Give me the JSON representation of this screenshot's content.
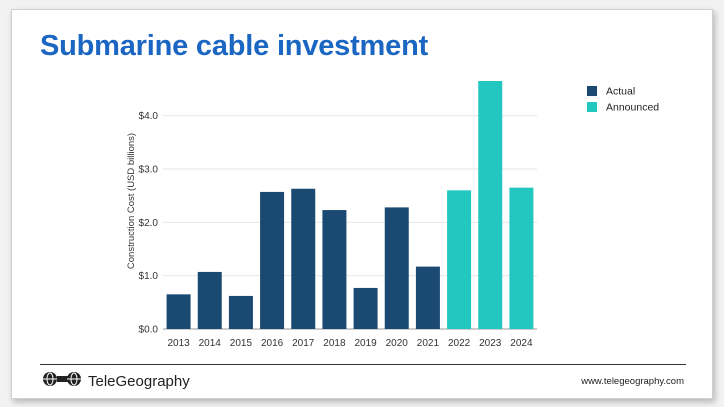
{
  "title": "Submarine cable investment",
  "footer": {
    "brand": "TeleGeography",
    "website": "www.telegeography.com",
    "logo_icon": "telegeography-logo-icon"
  },
  "colors": {
    "title": "#1a66c2",
    "actual": "#1a4a72",
    "announced": "#22c8c0"
  },
  "chart_data": {
    "type": "bar",
    "categories": [
      "2013",
      "2014",
      "2015",
      "2016",
      "2017",
      "2018",
      "2019",
      "2020",
      "2021",
      "2022",
      "2023",
      "2024"
    ],
    "series": [
      {
        "name": "Actual",
        "color": "#1a4a72",
        "values": [
          0.65,
          1.07,
          0.62,
          2.57,
          2.63,
          2.23,
          0.77,
          2.28,
          1.17,
          null,
          null,
          null
        ]
      },
      {
        "name": "Announced",
        "color": "#22c8c0",
        "values": [
          null,
          null,
          null,
          null,
          null,
          null,
          null,
          null,
          null,
          2.6,
          4.65,
          2.65
        ]
      }
    ],
    "ylabel": "Construction Cost (USD billions)",
    "xlabel": "",
    "yticks": [
      "$0.0",
      "$1.0",
      "$2.0",
      "$3.0",
      "$4.0"
    ],
    "ytick_values": [
      0,
      1,
      2,
      3,
      4
    ],
    "ylim": [
      0,
      4.8
    ],
    "legend_position": "top-right",
    "grid": true
  }
}
